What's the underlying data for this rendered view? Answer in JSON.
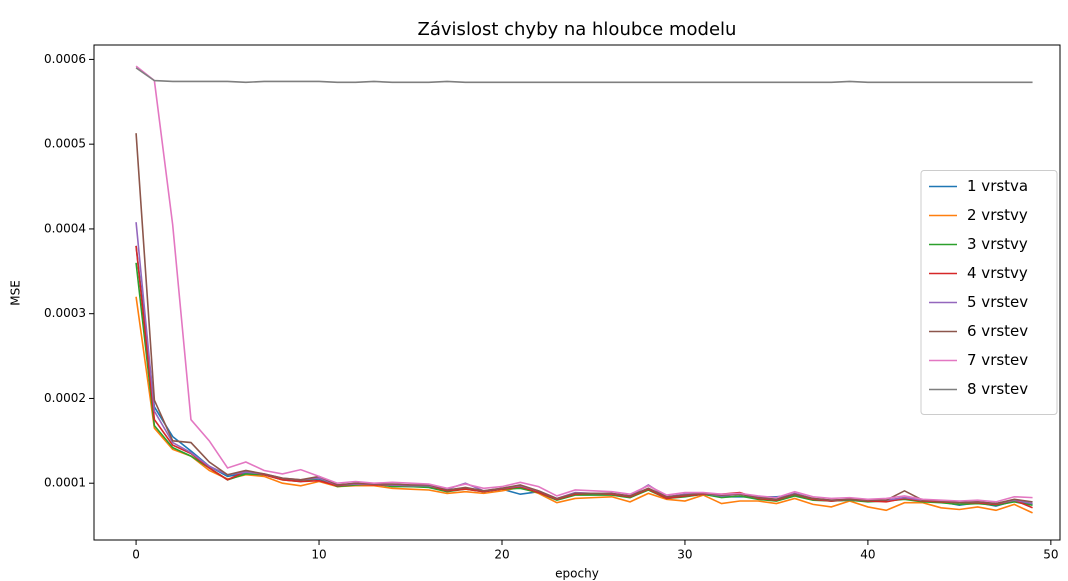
{
  "chart_data": {
    "type": "line",
    "title": "Závislost chyby na hloubce modelu",
    "x_label": "epochy",
    "y_label": "MSE",
    "x": [
      0,
      1,
      2,
      3,
      4,
      5,
      6,
      7,
      8,
      9,
      10,
      11,
      12,
      13,
      14,
      15,
      16,
      17,
      18,
      19,
      20,
      21,
      22,
      23,
      24,
      25,
      26,
      27,
      28,
      29,
      30,
      31,
      32,
      33,
      34,
      35,
      36,
      37,
      38,
      39,
      40,
      41,
      42,
      43,
      44,
      45,
      46,
      47,
      48,
      49
    ],
    "xlim": [
      -2.3,
      50.5
    ],
    "xticks": [
      0,
      10,
      20,
      30,
      40,
      50
    ],
    "ylim": [
      3.3e-05,
      0.000617
    ],
    "yticks": [
      0.0001,
      0.0002,
      0.0003,
      0.0004,
      0.0005,
      0.0006
    ],
    "legend": "center right",
    "series": [
      {
        "name": "1 vrstva",
        "color": "#1f77b4",
        "values": [
          0.00038,
          0.00019,
          0.000155,
          0.000138,
          0.00012,
          0.000108,
          0.000112,
          0.00011,
          0.000105,
          0.000103,
          0.000105,
          9.7e-05,
          9.85e-05,
          9.85e-05,
          9.7e-05,
          9.6e-05,
          9.6e-05,
          9.1e-05,
          9.4e-05,
          9e-05,
          9.3e-05,
          8.7e-05,
          9e-05,
          8.1e-05,
          8.7e-05,
          8.7e-05,
          8.7e-05,
          8.4e-05,
          9.3e-05,
          8.3e-05,
          8.5e-05,
          8.7e-05,
          8.4e-05,
          8.4e-05,
          8.4e-05,
          8.4e-05,
          8.6e-05,
          8.1e-05,
          7.9e-05,
          8e-05,
          7.9e-05,
          7.9e-05,
          8.2e-05,
          7.9e-05,
          7.8e-05,
          7.4e-05,
          7.7e-05,
          7.3e-05,
          7.9e-05,
          7.5e-05
        ]
      },
      {
        "name": "2 vrstvy",
        "color": "#ff7f0e",
        "values": [
          0.00032,
          0.000165,
          0.00014,
          0.000132,
          0.000115,
          0.000105,
          0.00011,
          0.000108,
          0.0001,
          9.7e-05,
          0.000102,
          9.6e-05,
          9.7e-05,
          9.7e-05,
          9.4e-05,
          9.3e-05,
          9.2e-05,
          8.8e-05,
          9e-05,
          8.8e-05,
          9.1e-05,
          9.5e-05,
          8.8e-05,
          7.7e-05,
          8.2e-05,
          8.3e-05,
          8.4e-05,
          7.8e-05,
          8.8e-05,
          8.1e-05,
          7.9e-05,
          8.6e-05,
          7.6e-05,
          7.9e-05,
          7.9e-05,
          7.6e-05,
          8.2e-05,
          7.5e-05,
          7.2e-05,
          7.9e-05,
          7.2e-05,
          6.8e-05,
          7.7e-05,
          7.7e-05,
          7.1e-05,
          6.9e-05,
          7.2e-05,
          6.8e-05,
          7.5e-05,
          6.5e-05
        ]
      },
      {
        "name": "3 vrstvy",
        "color": "#2ca02c",
        "values": [
          0.00036,
          0.000168,
          0.000142,
          0.000132,
          0.000118,
          0.000104,
          0.000111,
          0.00011,
          0.000104,
          0.000102,
          0.000106,
          9.6e-05,
          9.8e-05,
          9.9e-05,
          9.6e-05,
          9.6e-05,
          9.5e-05,
          9e-05,
          9.3e-05,
          9e-05,
          9.3e-05,
          9.4e-05,
          8.9e-05,
          8e-05,
          8.6e-05,
          8.6e-05,
          8.6e-05,
          8.3e-05,
          9.2e-05,
          8.2e-05,
          8.4e-05,
          8.7e-05,
          8.3e-05,
          8.5e-05,
          8.1e-05,
          7.9e-05,
          8.5e-05,
          8e-05,
          7.9e-05,
          8e-05,
          7.8e-05,
          7.9e-05,
          8.1e-05,
          7.8e-05,
          7.7e-05,
          7.5e-05,
          7.6e-05,
          7.4e-05,
          7.8e-05,
          7.4e-05
        ]
      },
      {
        "name": "4 vrstvy",
        "color": "#d62728",
        "values": [
          0.00038,
          0.000175,
          0.000145,
          0.000135,
          0.000118,
          0.000104,
          0.000114,
          0.00011,
          0.000104,
          0.000102,
          0.000103,
          9.7e-05,
          9.9e-05,
          9.8e-05,
          9.8e-05,
          9.7e-05,
          9.7e-05,
          9.1e-05,
          9.3e-05,
          9e-05,
          9.3e-05,
          9.6e-05,
          8.9e-05,
          8.1e-05,
          8.7e-05,
          8.8e-05,
          8.7e-05,
          8.4e-05,
          9.3e-05,
          8.2e-05,
          8.5e-05,
          8.7e-05,
          8.7e-05,
          8.9e-05,
          8.2e-05,
          8e-05,
          8.7e-05,
          8.1e-05,
          7.9e-05,
          8.1e-05,
          7.9e-05,
          7.8e-05,
          8.2e-05,
          7.9e-05,
          7.8e-05,
          7.7e-05,
          7.7e-05,
          7.5e-05,
          8e-05,
          7.1e-05
        ]
      },
      {
        "name": "5 vrstev",
        "color": "#9467bd",
        "values": [
          0.000408,
          0.000185,
          0.000148,
          0.000136,
          0.00012,
          0.00011,
          0.000113,
          0.000111,
          0.000106,
          0.000104,
          0.000106,
          9.8e-05,
          9.9e-05,
          9.9e-05,
          9.8e-05,
          9.7e-05,
          9.7e-05,
          9.3e-05,
          0.0001,
          9.1e-05,
          9.4e-05,
          9.7e-05,
          9.1e-05,
          8.2e-05,
          8.9e-05,
          8.8e-05,
          8.8e-05,
          8.5e-05,
          9.8e-05,
          8.4e-05,
          8.7e-05,
          8.8e-05,
          8.5e-05,
          8.7e-05,
          8.3e-05,
          8.1e-05,
          8.8e-05,
          8.2e-05,
          8e-05,
          8.1e-05,
          8e-05,
          8e-05,
          8.3e-05,
          8e-05,
          7.9e-05,
          7.7e-05,
          7.8e-05,
          7.6e-05,
          8e-05,
          7.6e-05
        ]
      },
      {
        "name": "6 vrstev",
        "color": "#8c564b",
        "values": [
          0.000513,
          0.000198,
          0.00015,
          0.000148,
          0.000125,
          0.00011,
          0.000115,
          0.000111,
          0.000106,
          0.000104,
          0.000108,
          9.8e-05,
          0.0001,
          9.9e-05,
          9.9e-05,
          9.8e-05,
          9.8e-05,
          9.2e-05,
          9.5e-05,
          9.1e-05,
          9.4e-05,
          9.8e-05,
          9.1e-05,
          8.2e-05,
          8.8e-05,
          8.8e-05,
          8.8e-05,
          8.5e-05,
          9.4e-05,
          8.4e-05,
          8.6e-05,
          8.8e-05,
          8.6e-05,
          8.7e-05,
          8.3e-05,
          8.1e-05,
          8.7e-05,
          8.2e-05,
          8e-05,
          8.1e-05,
          8e-05,
          8e-05,
          9.1e-05,
          8e-05,
          7.9e-05,
          7.7e-05,
          7.8e-05,
          7.6e-05,
          8.1e-05,
          7.8e-05
        ]
      },
      {
        "name": "7 vrstev",
        "color": "#e377c2",
        "values": [
          0.000592,
          0.000575,
          0.000405,
          0.000175,
          0.00015,
          0.000118,
          0.000125,
          0.000115,
          0.000111,
          0.000116,
          0.000108,
          0.0001,
          0.000102,
          0.0001,
          0.000101,
          0.0001,
          9.9e-05,
          9.4e-05,
          9.9e-05,
          9.4e-05,
          9.6e-05,
          0.000101,
          9.6e-05,
          8.5e-05,
          9.2e-05,
          9.1e-05,
          9e-05,
          8.7e-05,
          9.7e-05,
          8.6e-05,
          8.9e-05,
          8.9e-05,
          8.7e-05,
          8.8e-05,
          8.5e-05,
          8.3e-05,
          9e-05,
          8.4e-05,
          8.2e-05,
          8.3e-05,
          8.1e-05,
          8.2e-05,
          8.5e-05,
          8.1e-05,
          8e-05,
          7.9e-05,
          8e-05,
          7.8e-05,
          8.4e-05,
          8.3e-05
        ]
      },
      {
        "name": "8 vrstev",
        "color": "#7f7f7f",
        "values": [
          0.00059,
          0.000575,
          0.000574,
          0.000574,
          0.000574,
          0.000574,
          0.000573,
          0.000574,
          0.000574,
          0.000574,
          0.000574,
          0.000573,
          0.000573,
          0.000574,
          0.000573,
          0.000573,
          0.000573,
          0.000574,
          0.000573,
          0.000573,
          0.000573,
          0.000573,
          0.000573,
          0.000573,
          0.000573,
          0.000573,
          0.000573,
          0.000573,
          0.000573,
          0.000573,
          0.000573,
          0.000573,
          0.000573,
          0.000573,
          0.000573,
          0.000573,
          0.000573,
          0.000573,
          0.000573,
          0.000574,
          0.000573,
          0.000573,
          0.000573,
          0.000573,
          0.000573,
          0.000573,
          0.000573,
          0.000573,
          0.000573,
          0.000573
        ]
      }
    ]
  }
}
